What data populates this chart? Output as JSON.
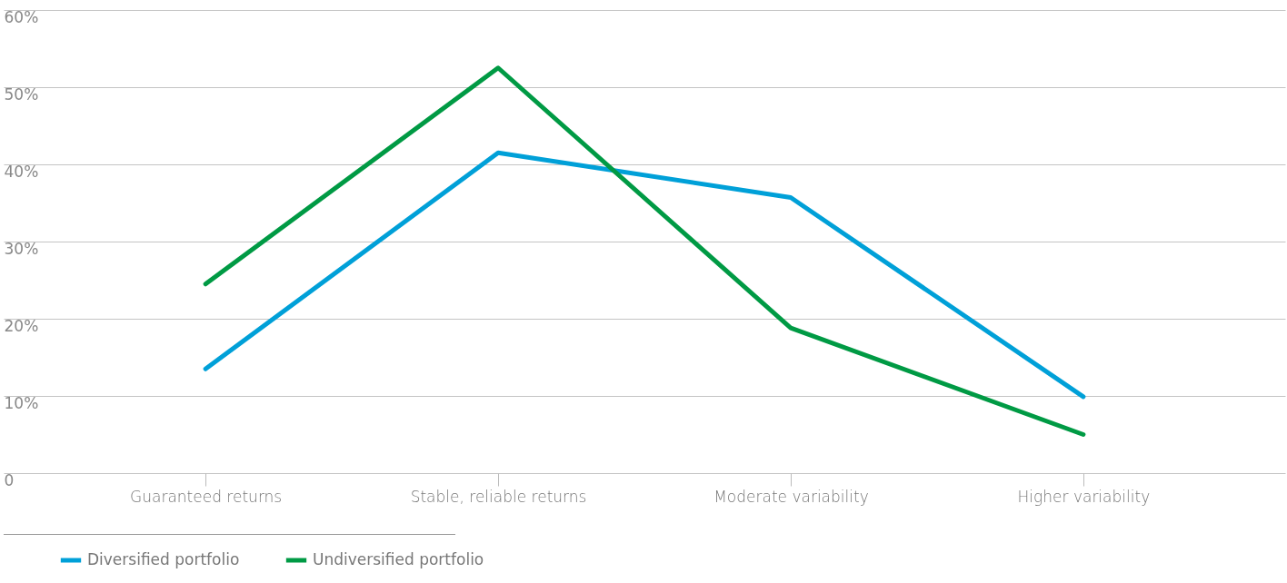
{
  "chart_data": {
    "type": "line",
    "categories": [
      "Guaranteed returns",
      "Stable, reliable returns",
      "Moderate variability",
      "Higher variability"
    ],
    "series": [
      {
        "name": "Diversified portfolio",
        "color": "#00a0d8",
        "values": [
          13.5,
          41.5,
          35.7,
          9.9
        ]
      },
      {
        "name": "Undiversified portfolio",
        "color": "#009a44",
        "values": [
          24.5,
          52.5,
          18.8,
          5.0
        ]
      }
    ],
    "ylim": [
      0,
      60
    ],
    "yticks": [
      {
        "value": 0,
        "label": "0"
      },
      {
        "value": 10,
        "label": "10%"
      },
      {
        "value": 20,
        "label": "20%"
      },
      {
        "value": 30,
        "label": "30%"
      },
      {
        "value": 40,
        "label": "40%"
      },
      {
        "value": 50,
        "label": "50%"
      },
      {
        "value": 60,
        "label": "60%"
      }
    ],
    "grid": "y",
    "legend": "bottom left",
    "marker": "none",
    "line_style": "solid"
  }
}
